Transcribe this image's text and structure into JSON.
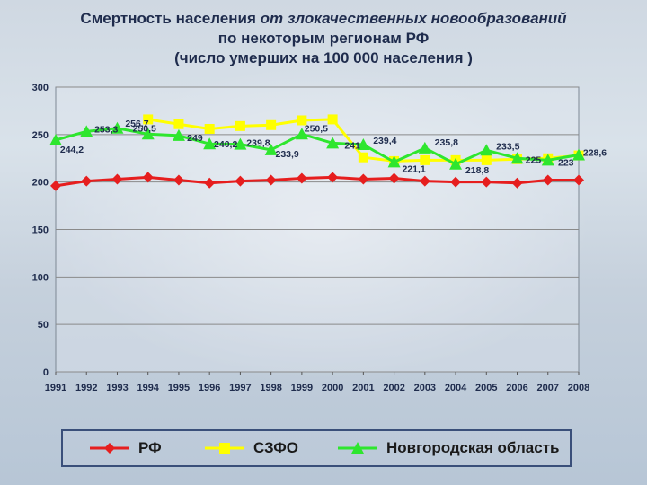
{
  "title": {
    "line1_plain": "Смертность населения ",
    "line1_italic": "от злокачественных новообразований",
    "line2": "по некоторым регионам РФ",
    "line3": "(число умерших на 100 000 населения )"
  },
  "colors": {
    "rf": "#e61e1e",
    "szfo": "#ffff00",
    "novgorod": "#2ee62e",
    "grid": "#8a8a8a",
    "axis_text": "#1f2c4d"
  },
  "chart_data": {
    "type": "line",
    "title": "Смертность населения от злокачественных новообразований по некоторым регионам РФ (число умерших на 100 000 населения )",
    "xlabel": "",
    "ylabel": "",
    "ylim": [
      0,
      300
    ],
    "yticks": [
      0,
      50,
      100,
      150,
      200,
      250,
      300
    ],
    "grid": true,
    "legend_position": "bottom",
    "categories": [
      "1991",
      "1992",
      "1993",
      "1994",
      "1995",
      "1996",
      "1997",
      "1998",
      "1999",
      "2000",
      "2001",
      "2002",
      "2003",
      "2004",
      "2005",
      "2006",
      "2007",
      "2008"
    ],
    "series": [
      {
        "name": "РФ",
        "marker": "diamond",
        "color": "#e61e1e",
        "values": [
          196,
          201,
          203,
          205,
          202,
          199,
          201,
          202,
          204,
          205,
          203,
          204,
          201,
          200,
          200,
          199,
          202,
          202
        ],
        "labels": []
      },
      {
        "name": "СЗФО",
        "marker": "square",
        "color": "#ffff00",
        "values": [
          null,
          null,
          null,
          266,
          261,
          256,
          259,
          260,
          265,
          266,
          226,
          222,
          223,
          223,
          223,
          224,
          225,
          228
        ],
        "labels": []
      },
      {
        "name": "Новгородская область",
        "marker": "triangle",
        "color": "#2ee62e",
        "values": [
          244.2,
          253.3,
          256.7,
          250.5,
          249,
          240.2,
          239.8,
          233.9,
          250.5,
          241,
          239.4,
          221.1,
          235.8,
          218.8,
          233.5,
          225,
          223,
          228.6
        ],
        "labels": [
          "244,2",
          "253,3",
          "256,7",
          "250,5",
          "249",
          "240,2",
          "239,8",
          "233,9",
          "250,5",
          "241",
          "239,4",
          "221,1",
          "235,8",
          "218,8",
          "233,5",
          "225",
          "223",
          "228,6"
        ]
      }
    ]
  }
}
